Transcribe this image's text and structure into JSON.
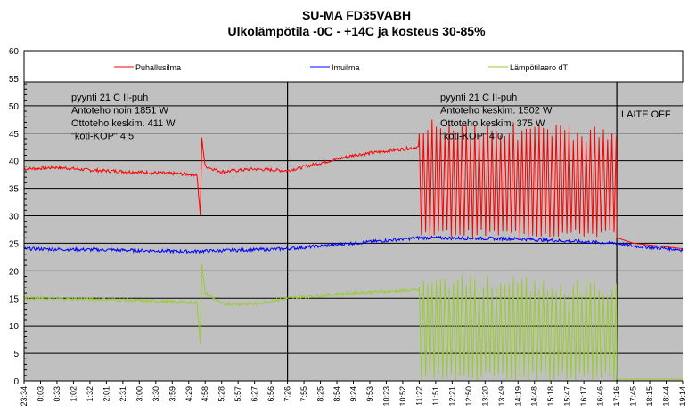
{
  "chart_data": {
    "type": "line",
    "title": "SU-MA FD35VABH",
    "subtitle": "Ulkolämpötila -0C - +14C ja kosteus 30-85%",
    "xlabel": "",
    "ylabel": "",
    "ylim": [
      0,
      60
    ],
    "yticks": [
      0,
      5,
      10,
      15,
      20,
      25,
      30,
      35,
      40,
      45,
      50,
      55,
      60
    ],
    "grid": true,
    "legend_position": "top",
    "categories": [
      "23:34",
      "0:03",
      "0:33",
      "1:02",
      "1:32",
      "2:01",
      "2:31",
      "3:00",
      "3:30",
      "3:59",
      "4:29",
      "4:58",
      "5:28",
      "5:57",
      "6:27",
      "6:56",
      "7:26",
      "7:55",
      "8:25",
      "8:54",
      "9:24",
      "9:53",
      "10:23",
      "10:52",
      "11:22",
      "11:51",
      "12:21",
      "12:50",
      "13:20",
      "13:49",
      "14:19",
      "14:48",
      "15:18",
      "15:47",
      "16:17",
      "16:46",
      "17:16",
      "17:45",
      "18:15",
      "18:44",
      "19:14"
    ],
    "series": [
      {
        "name": "Puhallusilma",
        "color": "#ff0000",
        "points": [
          [
            0,
            38.5
          ],
          [
            2,
            38.8
          ],
          [
            4,
            38.3
          ],
          [
            8,
            37.8
          ],
          [
            10.5,
            37.5
          ],
          [
            10.7,
            30
          ],
          [
            10.8,
            44
          ],
          [
            11,
            39
          ],
          [
            12,
            38
          ],
          [
            14,
            38.5
          ],
          [
            16,
            38.2
          ],
          [
            20,
            41
          ],
          [
            24,
            42.5
          ]
        ],
        "oscillation": {
          "from": 24,
          "to": 36,
          "min": 26,
          "max": 48
        },
        "tail": [
          [
            36,
            26
          ],
          [
            37,
            25
          ],
          [
            40,
            24
          ]
        ]
      },
      {
        "name": "Imuilma",
        "color": "#0000ff",
        "points": [
          [
            0,
            24
          ],
          [
            5,
            23.8
          ],
          [
            10,
            23.5
          ],
          [
            16,
            24
          ],
          [
            20,
            25
          ],
          [
            24,
            26
          ],
          [
            30,
            25.8
          ],
          [
            36,
            25
          ],
          [
            37,
            24.5
          ],
          [
            40,
            23.8
          ]
        ]
      },
      {
        "name": "Lämpötilaero dT",
        "color": "#99cc33",
        "points": [
          [
            0,
            15
          ],
          [
            5,
            14.8
          ],
          [
            10.5,
            14.2
          ],
          [
            10.7,
            7
          ],
          [
            10.8,
            21
          ],
          [
            11,
            16
          ],
          [
            12,
            14
          ],
          [
            14,
            14
          ],
          [
            16,
            15
          ],
          [
            20,
            16
          ],
          [
            24,
            16.5
          ]
        ],
        "oscillation": {
          "from": 24,
          "to": 36,
          "min": 0,
          "max": 20
        },
        "tail": [
          [
            36,
            0.3
          ],
          [
            40,
            0.3
          ]
        ]
      }
    ],
    "annotations": [
      {
        "lines": [
          "pyynti 21 C II-puh",
          "Antoteho noin 1851 W",
          "Ottoteho keskim. 411 W",
          "\"koti-KOP\" 4,5"
        ]
      },
      {
        "lines": [
          "pyynti 21 C II-puh",
          "Antoteho keskim. 1502 W",
          "Ottoteho keskim. 375 W",
          "\"koti-KOP\" 4,0"
        ]
      },
      {
        "lines": [
          "LAITE OFF"
        ]
      }
    ],
    "dividers": [
      "7:26",
      "17:16"
    ]
  }
}
